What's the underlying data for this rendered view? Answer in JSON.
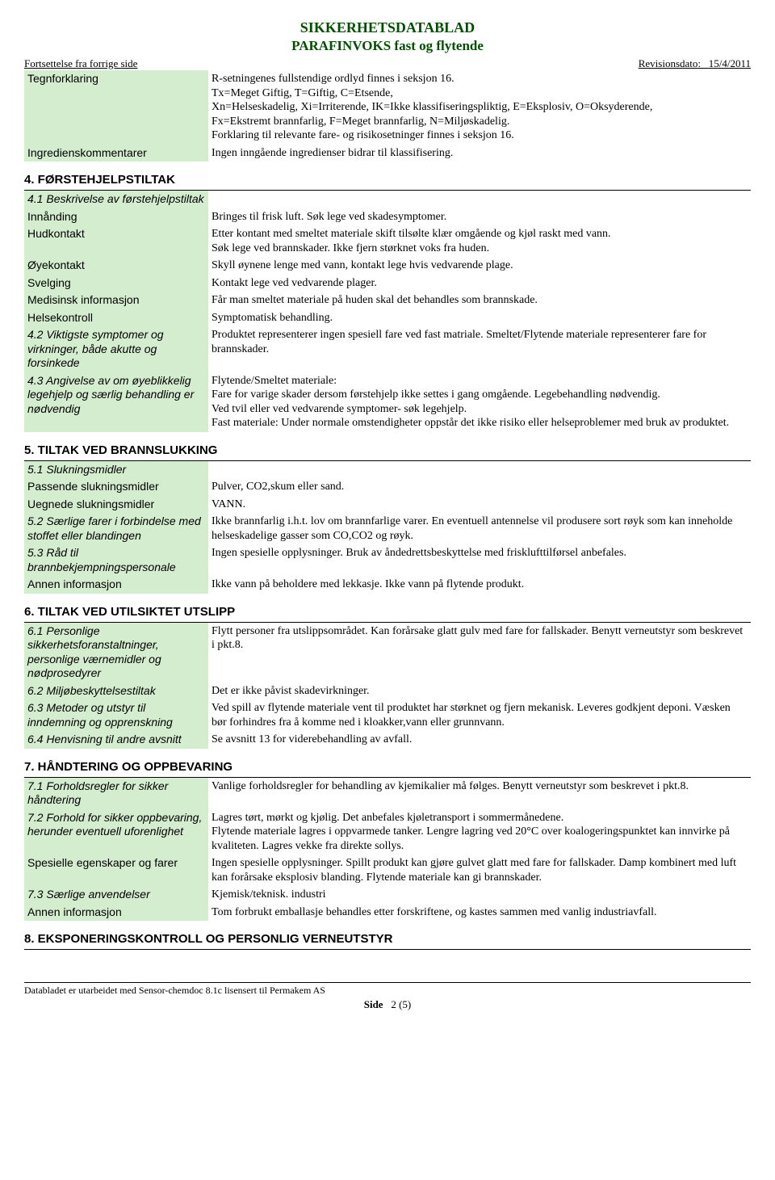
{
  "header": {
    "title1": "SIKKERHETSDATABLAD",
    "title2": "PARAFINVOKS fast og flytende",
    "cont_left": "Fortsettelse fra forrige side",
    "rev_label": "Revisionsdato:",
    "rev_date": "15/4/2011"
  },
  "rows_top": [
    {
      "label": "Tegnforklaring",
      "italic": false,
      "value": "R-setningenes fullstendige ordlyd finnes i seksjon 16.\nTx=Meget Giftig, T=Giftig, C=Etsende,\nXn=Helseskadelig, Xi=Irriterende, IK=Ikke klassifiseringspliktig, E=Eksplosiv, O=Oksyderende,\nFx=Ekstremt brannfarlig, F=Meget brannfarlig, N=Miljøskadelig.\nForklaring til relevante fare- og risikosetninger finnes i seksjon 16."
    },
    {
      "label": "Ingredienskommentarer",
      "italic": false,
      "value": "Ingen inngående ingredienser bidrar til klassifisering."
    }
  ],
  "section4": {
    "heading": "4. FØRSTEHJELPSTILTAK",
    "rows": [
      {
        "label": "4.1 Beskrivelse av førstehjelpstiltak",
        "italic": true,
        "value": ""
      },
      {
        "label": "Innånding",
        "italic": false,
        "value": "Bringes til frisk luft. Søk lege ved skadesymptomer."
      },
      {
        "label": "Hudkontakt",
        "italic": false,
        "value": "Etter kontant med smeltet materiale skift tilsølte klær omgående og kjøl raskt med vann.\nSøk lege ved brannskader. Ikke fjern størknet voks fra huden."
      },
      {
        "label": "Øyekontakt",
        "italic": false,
        "value": "Skyll øynene lenge med vann, kontakt lege hvis vedvarende plage."
      },
      {
        "label": "Svelging",
        "italic": false,
        "value": "Kontakt lege ved vedvarende plager."
      },
      {
        "label": "Medisinsk informasjon",
        "italic": false,
        "value": "Får man smeltet materiale på huden skal det behandles som brannskade."
      },
      {
        "label": "Helsekontroll",
        "italic": false,
        "value": "Symptomatisk behandling."
      },
      {
        "label": "4.2 Viktigste symptomer og virkninger, både akutte og forsinkede",
        "italic": true,
        "value": "Produktet representerer ingen spesiell fare ved fast matriale. Smeltet/Flytende materiale representerer fare for brannskader."
      },
      {
        "label": "4.3 Angivelse av om øyeblikkelig legehjelp og særlig behandling er nødvendig",
        "italic": true,
        "value": "Flytende/Smeltet materiale:\nFare for varige skader dersom førstehjelp ikke settes i gang omgående. Legebehandling nødvendig.\nVed tvil eller ved vedvarende symptomer- søk legehjelp.\nFast materiale: Under normale omstendigheter oppstår det ikke risiko eller helseproblemer med bruk av produktet."
      }
    ]
  },
  "section5": {
    "heading": "5. TILTAK VED BRANNSLUKKING",
    "rows": [
      {
        "label": "5.1 Slukningsmidler",
        "italic": true,
        "value": ""
      },
      {
        "label": "Passende slukningsmidler",
        "italic": false,
        "value": "Pulver, CO2,skum eller sand."
      },
      {
        "label": "Uegnede slukningsmidler",
        "italic": false,
        "value": "VANN."
      },
      {
        "label": "5.2 Særlige farer i forbindelse med stoffet eller blandingen",
        "italic": true,
        "value": "Ikke brannfarlig i.h.t. lov om brannfarlige varer. En eventuell antennelse vil produsere sort røyk som kan inneholde helseskadelige gasser som CO,CO2 og røyk."
      },
      {
        "label": "5.3 Råd til brannbekjempningspersonale",
        "italic": true,
        "value": "Ingen spesielle opplysninger. Bruk av åndedrettsbeskyttelse med frisklufttilførsel anbefales."
      },
      {
        "label": "Annen informasjon",
        "italic": false,
        "value": "Ikke vann på beholdere med lekkasje. Ikke vann på flytende produkt."
      }
    ]
  },
  "section6": {
    "heading": "6. TILTAK VED UTILSIKTET UTSLIPP",
    "rows": [
      {
        "label": "6.1 Personlige sikkerhetsforanstaltninger, personlige værnemidler og nødprosedyrer",
        "italic": true,
        "value": "Flytt personer fra utslippsområdet. Kan forårsake glatt gulv med fare for fallskader. Benytt verneutstyr som beskrevet i pkt.8."
      },
      {
        "label": "6.2 Miljøbeskyttelsestiltak",
        "italic": true,
        "value": "Det er ikke påvist skadevirkninger."
      },
      {
        "label": "6.3 Metoder og utstyr til inndemning og opprenskning",
        "italic": true,
        "value": "Ved spill av flytende materiale vent til produktet har størknet og fjern mekanisk. Leveres godkjent deponi. Væsken bør forhindres fra å komme ned i kloakker,vann eller grunnvann."
      },
      {
        "label": "6.4 Henvisning til andre avsnitt",
        "italic": true,
        "value": "Se avsnitt 13 for viderebehandling av avfall."
      }
    ]
  },
  "section7": {
    "heading": "7. HÅNDTERING OG OPPBEVARING",
    "rows": [
      {
        "label": "7.1 Forholdsregler for sikker håndtering",
        "italic": true,
        "value": "Vanlige forholdsregler for behandling av kjemikalier må følges. Benytt verneutstyr som beskrevet i pkt.8."
      },
      {
        "label": "7.2 Forhold for sikker oppbevaring, herunder eventuell uforenlighet",
        "italic": true,
        "value": "Lagres tørt, mørkt og kjølig. Det anbefales kjøletransport i sommermånedene.\nFlytende materiale lagres i oppvarmede tanker. Lengre lagring ved 20°C over koalogeringspunktet kan innvirke på kvaliteten. Lagres vekke fra direkte sollys."
      },
      {
        "label": "Spesielle egenskaper og farer",
        "italic": false,
        "value": "Ingen spesielle opplysninger. Spillt produkt kan gjøre gulvet glatt med fare for fallskader. Damp kombinert med luft kan forårsake eksplosiv blanding. Flytende materiale kan gi brannskader."
      },
      {
        "label": "7.3 Særlige anvendelser",
        "italic": true,
        "value": "Kjemisk/teknisk. industri"
      },
      {
        "label": "Annen informasjon",
        "italic": false,
        "value": "Tom forbrukt emballasje behandles etter forskriftene, og kastes sammen med vanlig industriavfall."
      }
    ]
  },
  "section8": {
    "heading": "8. EKSPONERINGSKONTROLL OG PERSONLIG VERNEUTSTYR"
  },
  "footer": {
    "credit": "Databladet er utarbeidet med Sensor-chemdoc 8.1c lisensert til Permakem AS",
    "page_label": "Side",
    "page_num": "2 (5)"
  },
  "style": {
    "label_bg": "#d4edcf",
    "title_color": "#005000",
    "sans": "Arial, Helvetica, sans-serif",
    "serif": "\"Times New Roman\", Times, serif"
  }
}
